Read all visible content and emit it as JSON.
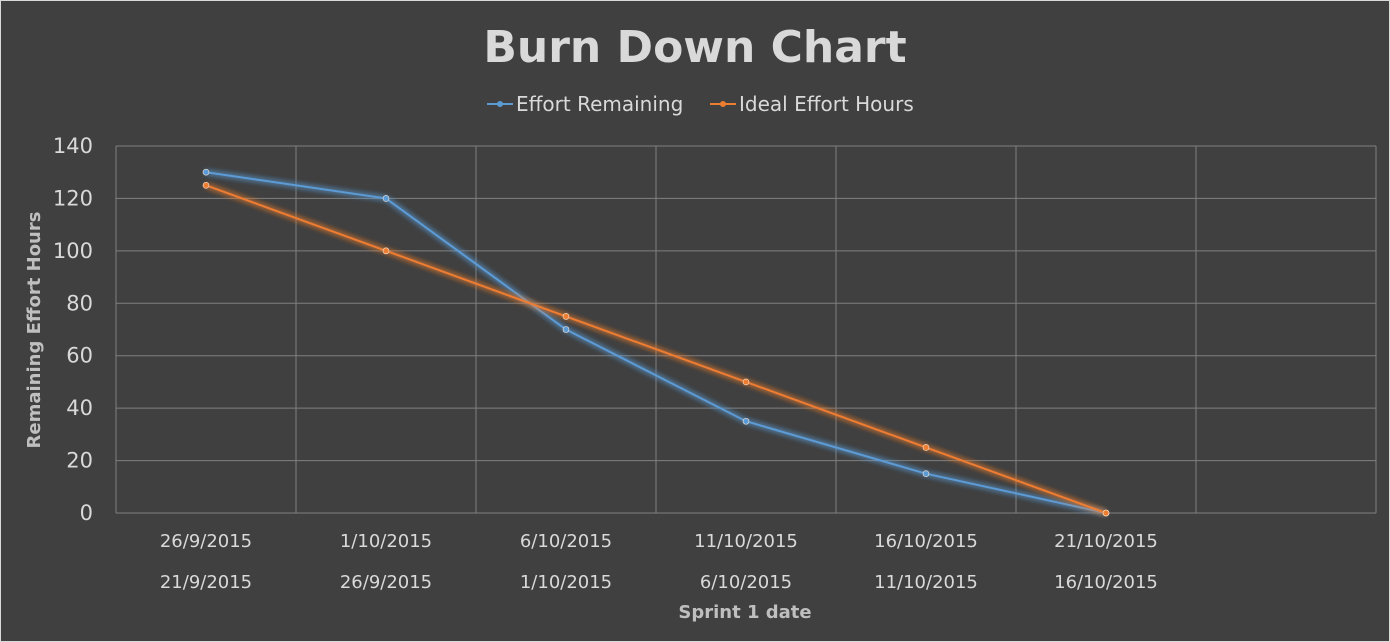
{
  "chart_data": {
    "type": "line",
    "title": "Burn Down Chart",
    "xlabel": "Sprint 1 date",
    "ylabel": "Remaining Effort Hours",
    "ylim": [
      0,
      140
    ],
    "yticks": [
      0,
      20,
      40,
      60,
      80,
      100,
      120,
      140
    ],
    "categories": [
      [
        "26/9/2015",
        "21/9/2015"
      ],
      [
        "1/10/2015",
        "26/9/2015"
      ],
      [
        "6/10/2015",
        "1/10/2015"
      ],
      [
        "11/10/2015",
        "6/10/2015"
      ],
      [
        "16/10/2015",
        "11/10/2015"
      ],
      [
        "21/10/2015",
        "16/10/2015"
      ],
      [
        "",
        ""
      ]
    ],
    "series": [
      {
        "name": "Effort Remaining",
        "color": "#5b9bd5",
        "values": [
          130,
          120,
          70,
          35,
          15,
          0,
          null
        ]
      },
      {
        "name": "Ideal Effort Hours",
        "color": "#ed7d31",
        "values": [
          125,
          100,
          75,
          50,
          25,
          0,
          null
        ]
      }
    ],
    "grid": true,
    "legend_position": "top-center",
    "colors": {
      "background": "#404040",
      "text": "#d9d9d9",
      "grid": "#7f7f7f"
    }
  }
}
